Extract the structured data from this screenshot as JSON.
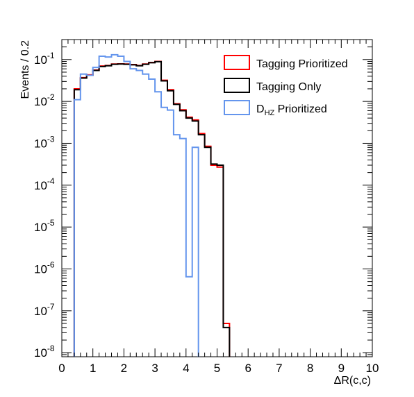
{
  "chart_data": {
    "type": "histogram",
    "title": "",
    "xlabel": "ΔR(c,c)",
    "ylabel": "Events / 0.2",
    "xlim": [
      0,
      10
    ],
    "ylim": [
      8e-09,
      0.3
    ],
    "yscale": "log",
    "bin_width": 0.2,
    "x_ticks": [
      "0",
      "1",
      "2",
      "3",
      "4",
      "5",
      "6",
      "7",
      "8",
      "9",
      "10"
    ],
    "y_ticks": [
      {
        "base": "10",
        "exp": "-8",
        "value": 1e-08
      },
      {
        "base": "10",
        "exp": "-7",
        "value": 1e-07
      },
      {
        "base": "10",
        "exp": "-6",
        "value": 1e-06
      },
      {
        "base": "10",
        "exp": "-5",
        "value": 1e-05
      },
      {
        "base": "10",
        "exp": "-4",
        "value": 0.0001
      },
      {
        "base": "10",
        "exp": "-3",
        "value": 0.001
      },
      {
        "base": "10",
        "exp": "-2",
        "value": 0.01
      },
      {
        "base": "10",
        "exp": "-1",
        "value": 0.1
      }
    ],
    "legend": {
      "position": "top-right",
      "entries": [
        {
          "name": "Tagging Prioritized",
          "color": "#ff0000"
        },
        {
          "name": "Tagging Only",
          "color": "#000000"
        },
        {
          "name": "D",
          "sub": "HZ",
          "suffix": " Prioritized",
          "color": "#6495ed"
        }
      ]
    },
    "series": [
      {
        "name": "Tagging Prioritized",
        "color": "#ff0000",
        "bins": [
          {
            "x0": 0.4,
            "x1": 0.6,
            "y": 0.02
          },
          {
            "x0": 0.6,
            "x1": 0.8,
            "y": 0.037
          },
          {
            "x0": 0.8,
            "x1": 1.0,
            "y": 0.043
          },
          {
            "x0": 1.0,
            "x1": 1.2,
            "y": 0.056
          },
          {
            "x0": 1.2,
            "x1": 1.4,
            "y": 0.07
          },
          {
            "x0": 1.4,
            "x1": 1.6,
            "y": 0.072
          },
          {
            "x0": 1.6,
            "x1": 1.8,
            "y": 0.078
          },
          {
            "x0": 1.8,
            "x1": 2.0,
            "y": 0.079
          },
          {
            "x0": 2.0,
            "x1": 2.2,
            "y": 0.078
          },
          {
            "x0": 2.2,
            "x1": 2.4,
            "y": 0.076
          },
          {
            "x0": 2.4,
            "x1": 2.6,
            "y": 0.072
          },
          {
            "x0": 2.6,
            "x1": 2.8,
            "y": 0.078
          },
          {
            "x0": 2.8,
            "x1": 3.0,
            "y": 0.085
          },
          {
            "x0": 3.0,
            "x1": 3.2,
            "y": 0.09
          },
          {
            "x0": 3.2,
            "x1": 3.4,
            "y": 0.032
          },
          {
            "x0": 3.4,
            "x1": 3.6,
            "y": 0.019
          },
          {
            "x0": 3.6,
            "x1": 3.8,
            "y": 0.0088
          },
          {
            "x0": 3.8,
            "x1": 4.0,
            "y": 0.0063
          },
          {
            "x0": 4.0,
            "x1": 4.2,
            "y": 0.0042
          },
          {
            "x0": 4.2,
            "x1": 4.4,
            "y": 0.0036
          },
          {
            "x0": 4.4,
            "x1": 4.6,
            "y": 0.0017
          },
          {
            "x0": 4.6,
            "x1": 4.8,
            "y": 0.00085
          },
          {
            "x0": 4.8,
            "x1": 5.0,
            "y": 0.0003
          },
          {
            "x0": 5.0,
            "x1": 5.2,
            "y": 0.00027
          },
          {
            "x0": 5.2,
            "x1": 5.4,
            "y": 5e-08
          }
        ]
      },
      {
        "name": "Tagging Only",
        "color": "#000000",
        "bins": [
          {
            "x0": 0.4,
            "x1": 0.6,
            "y": 0.019
          },
          {
            "x0": 0.6,
            "x1": 0.8,
            "y": 0.036
          },
          {
            "x0": 0.8,
            "x1": 1.0,
            "y": 0.042
          },
          {
            "x0": 1.0,
            "x1": 1.2,
            "y": 0.055
          },
          {
            "x0": 1.2,
            "x1": 1.4,
            "y": 0.068
          },
          {
            "x0": 1.4,
            "x1": 1.6,
            "y": 0.071
          },
          {
            "x0": 1.6,
            "x1": 1.8,
            "y": 0.077
          },
          {
            "x0": 1.8,
            "x1": 2.0,
            "y": 0.078
          },
          {
            "x0": 2.0,
            "x1": 2.2,
            "y": 0.077
          },
          {
            "x0": 2.2,
            "x1": 2.4,
            "y": 0.075
          },
          {
            "x0": 2.4,
            "x1": 2.6,
            "y": 0.071
          },
          {
            "x0": 2.6,
            "x1": 2.8,
            "y": 0.077
          },
          {
            "x0": 2.8,
            "x1": 3.0,
            "y": 0.084
          },
          {
            "x0": 3.0,
            "x1": 3.2,
            "y": 0.089
          },
          {
            "x0": 3.2,
            "x1": 3.4,
            "y": 0.031
          },
          {
            "x0": 3.4,
            "x1": 3.6,
            "y": 0.018
          },
          {
            "x0": 3.6,
            "x1": 3.8,
            "y": 0.0085
          },
          {
            "x0": 3.8,
            "x1": 4.0,
            "y": 0.006
          },
          {
            "x0": 4.0,
            "x1": 4.2,
            "y": 0.004
          },
          {
            "x0": 4.2,
            "x1": 4.4,
            "y": 0.0034
          },
          {
            "x0": 4.4,
            "x1": 4.6,
            "y": 0.0016
          },
          {
            "x0": 4.6,
            "x1": 4.8,
            "y": 0.0008
          },
          {
            "x0": 4.8,
            "x1": 5.0,
            "y": 0.00032
          },
          {
            "x0": 5.0,
            "x1": 5.2,
            "y": 0.0003
          },
          {
            "x0": 5.2,
            "x1": 5.4,
            "y": 4e-08
          }
        ]
      },
      {
        "name": "D_HZ Prioritized",
        "color": "#6495ed",
        "bins": [
          {
            "x0": 0.4,
            "x1": 0.6,
            "y": 0.011
          },
          {
            "x0": 0.6,
            "x1": 0.8,
            "y": 0.045
          },
          {
            "x0": 0.8,
            "x1": 1.0,
            "y": 0.042
          },
          {
            "x0": 1.0,
            "x1": 1.2,
            "y": 0.065
          },
          {
            "x0": 1.2,
            "x1": 1.4,
            "y": 0.12
          },
          {
            "x0": 1.4,
            "x1": 1.6,
            "y": 0.115
          },
          {
            "x0": 1.6,
            "x1": 1.8,
            "y": 0.13
          },
          {
            "x0": 1.8,
            "x1": 2.0,
            "y": 0.12
          },
          {
            "x0": 2.0,
            "x1": 2.2,
            "y": 0.09
          },
          {
            "x0": 2.2,
            "x1": 2.4,
            "y": 0.06
          },
          {
            "x0": 2.4,
            "x1": 2.6,
            "y": 0.055
          },
          {
            "x0": 2.6,
            "x1": 2.8,
            "y": 0.045
          },
          {
            "x0": 2.8,
            "x1": 3.0,
            "y": 0.034
          },
          {
            "x0": 3.0,
            "x1": 3.2,
            "y": 0.017
          },
          {
            "x0": 3.2,
            "x1": 3.4,
            "y": 0.0072
          },
          {
            "x0": 3.4,
            "x1": 3.6,
            "y": 0.0062
          },
          {
            "x0": 3.6,
            "x1": 3.8,
            "y": 0.0016
          },
          {
            "x0": 3.8,
            "x1": 4.0,
            "y": 0.0013
          },
          {
            "x0": 4.0,
            "x1": 4.2,
            "y": 6.5e-07
          },
          {
            "x0": 4.2,
            "x1": 4.4,
            "y": 0.0008
          }
        ]
      }
    ]
  }
}
